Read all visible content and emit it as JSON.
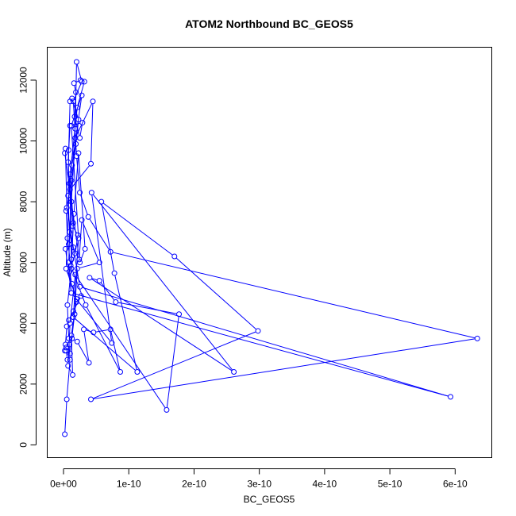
{
  "chart_data": {
    "type": "scatter",
    "title": "ATOM2 Northbound BC_GEOS5",
    "xlabel": "BC_GEOS5",
    "ylabel": "Altitude (m)",
    "xlim": [
      0,
      6.3e-10
    ],
    "ylim": [
      350,
      12600
    ],
    "x_ticks": [
      0,
      1e-10,
      2e-10,
      3e-10,
      4e-10,
      5e-10,
      6e-10
    ],
    "x_tick_labels": [
      "0e+00",
      "1e-10",
      "2e-10",
      "3e-10",
      "4e-10",
      "5e-10",
      "6e-10"
    ],
    "y_ticks": [
      0,
      2000,
      4000,
      6000,
      8000,
      10000,
      12000
    ],
    "y_tick_labels": [
      "0",
      "2000",
      "4000",
      "6000",
      "8000",
      "10000",
      "12000"
    ],
    "grid": false,
    "legend": "none",
    "colors": {
      "series": "#0000ff",
      "axis": "#000000"
    },
    "series": [
      {
        "points": [
          [
            2e-12,
            350
          ],
          [
            5e-12,
            1500
          ],
          [
            1e-11,
            2800
          ],
          [
            8e-12,
            3500
          ],
          [
            6e-12,
            4600
          ],
          [
            1.2e-11,
            5800
          ],
          [
            1.5e-11,
            7300
          ],
          [
            1e-11,
            8900
          ],
          [
            1.8e-11,
            10400
          ],
          [
            2e-11,
            12600
          ],
          [
            2.8e-11,
            11950
          ],
          [
            1.5e-11,
            11300
          ],
          [
            2e-11,
            9500
          ],
          [
            2.5e-11,
            8300
          ],
          [
            3.8e-11,
            7500
          ],
          [
            7.2e-11,
            6350
          ],
          [
            6.34e-10,
            3500
          ],
          [
            4.2e-11,
            1500
          ],
          [
            2.98e-10,
            3750
          ],
          [
            1.7e-10,
            6200
          ],
          [
            5.8e-11,
            8000
          ],
          [
            7.8e-11,
            5650
          ],
          [
            1.13e-10,
            2400
          ],
          [
            1.5e-11,
            4200
          ],
          [
            2.3e-11,
            6800
          ],
          [
            1.2e-11,
            10500
          ],
          [
            2.8e-11,
            11500
          ],
          [
            1.3e-11,
            9200
          ],
          [
            8e-12,
            6000
          ],
          [
            1.2e-11,
            5000
          ],
          [
            5.93e-10,
            1580
          ],
          [
            2.5e-11,
            5200
          ],
          [
            5e-12,
            7800
          ],
          [
            3e-12,
            9750
          ],
          [
            2e-12,
            9600
          ],
          [
            1.2e-11,
            8000
          ],
          [
            2.5e-11,
            6000
          ],
          [
            3.3e-11,
            6450
          ],
          [
            2.3e-11,
            9600
          ],
          [
            1.6e-11,
            7600
          ],
          [
            1.2e-11,
            6100
          ],
          [
            1e-11,
            8400
          ],
          [
            4.2e-11,
            9250
          ],
          [
            4.5e-11,
            11300
          ],
          [
            1.8e-11,
            10100
          ],
          [
            8e-12,
            6600
          ],
          [
            3e-12,
            6450
          ],
          [
            1.2e-11,
            5000
          ],
          [
            7.4e-11,
            3350
          ],
          [
            4.3e-11,
            8300
          ],
          [
            2.61e-10,
            2400
          ],
          [
            4e-11,
            5500
          ],
          [
            5.5e-11,
            5400
          ],
          [
            8e-11,
            4700
          ],
          [
            1.77e-10,
            4300
          ],
          [
            1.58e-10,
            1150
          ],
          [
            1.8e-11,
            5600
          ],
          [
            1e-11,
            4000
          ],
          [
            7e-12,
            2600
          ],
          [
            1.4e-11,
            2300
          ],
          [
            1.2e-11,
            3600
          ],
          [
            2e-11,
            4800
          ],
          [
            4e-12,
            5800
          ],
          [
            9e-12,
            8600
          ],
          [
            2.1e-11,
            11100
          ],
          [
            3.2e-11,
            11950
          ],
          [
            2.6e-11,
            12000
          ],
          [
            1.6e-11,
            11900
          ],
          [
            1.9e-11,
            11600
          ],
          [
            1.7e-11,
            10800
          ],
          [
            2.5e-11,
            10100
          ],
          [
            2.9e-11,
            10600
          ],
          [
            1e-11,
            10500
          ],
          [
            7e-12,
            9300
          ],
          [
            1.4e-11,
            7200
          ],
          [
            2.2e-11,
            6900
          ],
          [
            1.8e-11,
            6300
          ],
          [
            9e-12,
            5700
          ],
          [
            1.3e-11,
            5300
          ],
          [
            2e-11,
            4700
          ],
          [
            2.7e-11,
            4900
          ],
          [
            1.5e-11,
            4400
          ],
          [
            8e-12,
            4100
          ],
          [
            5e-12,
            3900
          ],
          [
            3e-12,
            3300
          ],
          [
            2e-12,
            3100
          ],
          [
            4e-12,
            3200
          ],
          [
            9e-12,
            3300
          ],
          [
            1.3e-11,
            3500
          ],
          [
            2.1e-11,
            3400
          ],
          [
            3.9e-11,
            2700
          ],
          [
            3.1e-11,
            3800
          ],
          [
            4.6e-11,
            3700
          ],
          [
            7.2e-11,
            3800
          ],
          [
            8.7e-11,
            2400
          ],
          [
            3.4e-11,
            4600
          ],
          [
            1.1e-11,
            5900
          ],
          [
            6e-12,
            6800
          ],
          [
            4e-12,
            7700
          ],
          [
            1.2e-11,
            8700
          ],
          [
            1.9e-11,
            9900
          ],
          [
            2.3e-11,
            10700
          ],
          [
            1.3e-11,
            11400
          ],
          [
            1e-11,
            11300
          ],
          [
            8e-12,
            9700
          ],
          [
            7e-12,
            8200
          ],
          [
            9e-12,
            7000
          ],
          [
            1.5e-11,
            6500
          ],
          [
            2.4e-11,
            6100
          ],
          [
            2.8e-11,
            7400
          ],
          [
            5.5e-11,
            6000
          ],
          [
            2.1e-11,
            5800
          ],
          [
            1.7e-11,
            4300
          ],
          [
            1e-11,
            3000
          ],
          [
            6e-12,
            2800
          ],
          [
            4e-12,
            3100
          ]
        ]
      }
    ]
  }
}
